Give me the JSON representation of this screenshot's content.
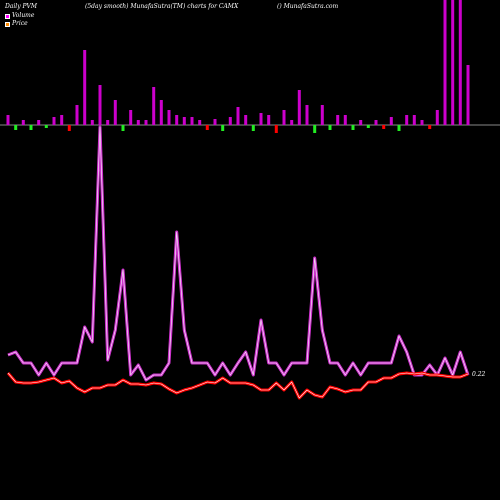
{
  "header": {
    "left": "Daily PVM",
    "center": "(5day smooth) MunafaSutra(TM) charts for CAMX",
    "right": "() MunafaSutra.com"
  },
  "legend": [
    {
      "label": "Volume",
      "color": "#ff00ff"
    },
    {
      "label": "Price",
      "color": "#ff8c00"
    }
  ],
  "colors": {
    "background": "#000000",
    "up_bar": "#cc00cc",
    "down_bar": "#ff0000",
    "neutral_bar": "#22ee22",
    "baseline": "#888888",
    "pvm_outer": "#cc33cc",
    "pvm_inner": "#ffffff",
    "price_outer": "#ff0000",
    "price_inner": "#ffffff"
  },
  "chart_data": {
    "type": "line",
    "x": [
      1,
      2,
      3,
      4,
      5,
      6,
      7,
      8,
      9,
      10,
      11,
      12,
      13,
      14,
      15,
      16,
      17,
      18,
      19,
      20,
      21,
      22,
      23,
      24,
      25,
      26,
      27,
      28,
      29,
      30,
      31,
      32,
      33,
      34,
      35,
      36,
      37,
      38,
      39,
      40,
      41,
      42,
      43,
      44,
      45,
      46,
      47,
      48,
      49,
      50,
      51,
      52,
      53,
      54,
      55,
      56,
      57,
      58,
      59,
      60,
      61
    ],
    "volume_bars": [
      {
        "v": 1,
        "c": "up"
      },
      {
        "v": -0.5,
        "c": "neutral"
      },
      {
        "v": 0.5,
        "c": "up"
      },
      {
        "v": -0.5,
        "c": "neutral"
      },
      {
        "v": 0.5,
        "c": "up"
      },
      {
        "v": -0.3,
        "c": "neutral"
      },
      {
        "v": 0.8,
        "c": "up"
      },
      {
        "v": 1,
        "c": "up"
      },
      {
        "v": -0.6,
        "c": "down"
      },
      {
        "v": 2,
        "c": "up"
      },
      {
        "v": 7.5,
        "c": "up"
      },
      {
        "v": 0.5,
        "c": "up"
      },
      {
        "v": 4,
        "c": "up"
      },
      {
        "v": 0.5,
        "c": "up"
      },
      {
        "v": 2.5,
        "c": "up"
      },
      {
        "v": -0.6,
        "c": "neutral"
      },
      {
        "v": 1.5,
        "c": "up"
      },
      {
        "v": 0.5,
        "c": "up"
      },
      {
        "v": 0.5,
        "c": "up"
      },
      {
        "v": 3.8,
        "c": "up"
      },
      {
        "v": 2.5,
        "c": "up"
      },
      {
        "v": 1.5,
        "c": "up"
      },
      {
        "v": 1,
        "c": "up"
      },
      {
        "v": 0.8,
        "c": "up"
      },
      {
        "v": 0.8,
        "c": "up"
      },
      {
        "v": 0.5,
        "c": "up"
      },
      {
        "v": -0.5,
        "c": "down"
      },
      {
        "v": 0.6,
        "c": "up"
      },
      {
        "v": -0.6,
        "c": "neutral"
      },
      {
        "v": 0.8,
        "c": "up"
      },
      {
        "v": 1.8,
        "c": "up"
      },
      {
        "v": 1,
        "c": "up"
      },
      {
        "v": -0.6,
        "c": "neutral"
      },
      {
        "v": 1.2,
        "c": "up"
      },
      {
        "v": 1,
        "c": "up"
      },
      {
        "v": -0.8,
        "c": "down"
      },
      {
        "v": 1.5,
        "c": "up"
      },
      {
        "v": 0.5,
        "c": "up"
      },
      {
        "v": 3.5,
        "c": "up"
      },
      {
        "v": 2,
        "c": "up"
      },
      {
        "v": -0.8,
        "c": "neutral"
      },
      {
        "v": 2,
        "c": "up"
      },
      {
        "v": -0.5,
        "c": "neutral"
      },
      {
        "v": 1,
        "c": "up"
      },
      {
        "v": 1,
        "c": "up"
      },
      {
        "v": -0.5,
        "c": "neutral"
      },
      {
        "v": 0.5,
        "c": "up"
      },
      {
        "v": -0.3,
        "c": "neutral"
      },
      {
        "v": 0.5,
        "c": "up"
      },
      {
        "v": -0.4,
        "c": "down"
      },
      {
        "v": 0.8,
        "c": "up"
      },
      {
        "v": -0.6,
        "c": "neutral"
      },
      {
        "v": 1,
        "c": "up"
      },
      {
        "v": 1,
        "c": "up"
      },
      {
        "v": 0.5,
        "c": "up"
      },
      {
        "v": -0.4,
        "c": "down"
      },
      {
        "v": 1.5,
        "c": "up"
      },
      {
        "v": 12.5,
        "c": "up"
      },
      {
        "v": 12.5,
        "c": "up"
      },
      {
        "v": 12.5,
        "c": "up"
      },
      {
        "v": 6,
        "c": "up"
      }
    ],
    "pvm_series": [
      355,
      352,
      363,
      363,
      375,
      363,
      375,
      363,
      363,
      363,
      327,
      342,
      127,
      360,
      330,
      270,
      375,
      365,
      380,
      375,
      375,
      363,
      232,
      330,
      363,
      363,
      363,
      375,
      363,
      375,
      363,
      352,
      375,
      320,
      363,
      363,
      375,
      363,
      363,
      363,
      258,
      330,
      363,
      363,
      375,
      363,
      375,
      363,
      363,
      363,
      363,
      336,
      352,
      375,
      375,
      365,
      375,
      358,
      375,
      352,
      375
    ],
    "price_series": [
      373,
      382,
      383,
      383,
      382,
      380,
      378,
      383,
      381,
      388,
      392,
      388,
      388,
      385,
      385,
      380,
      384,
      384,
      385,
      383,
      384,
      389,
      393,
      390,
      388,
      385,
      382,
      383,
      378,
      383,
      383,
      383,
      385,
      390,
      390,
      383,
      390,
      382,
      398,
      390,
      395,
      397,
      387,
      389,
      392,
      390,
      390,
      382,
      382,
      378,
      378,
      374,
      373,
      374,
      373,
      375,
      375,
      376,
      377,
      377,
      374
    ],
    "price_value_label": "0.22"
  }
}
